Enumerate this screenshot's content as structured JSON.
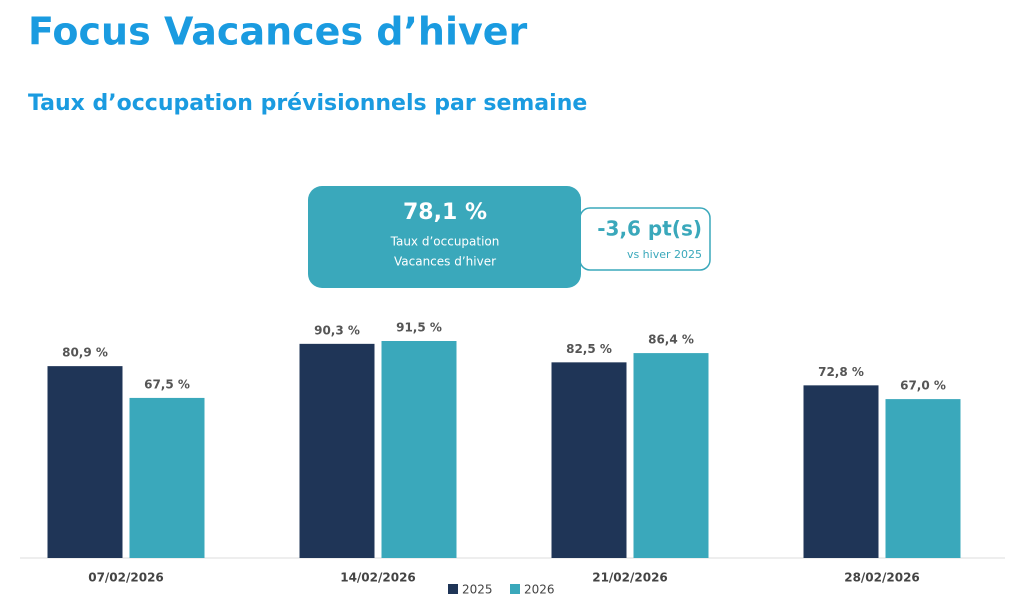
{
  "chart_data": {
    "type": "bar",
    "title": "Focus Vacances d’hiver",
    "subtitle": "Taux d’occupation prévisionnels par semaine",
    "annotations": {
      "value": "78,1 %",
      "label": [
        "Taux d’occupation",
        "Vacances d’hiver"
      ],
      "delta": "-3,6 pt(s)",
      "delta_label": "vs hiver 2025"
    },
    "categories": [
      "07/02/2026",
      "14/02/2026",
      "21/02/2026",
      "28/02/2026"
    ],
    "series": [
      {
        "name": "2025",
        "color": "#1f3557",
        "values": [
          80.9,
          90.3,
          82.5,
          72.8
        ],
        "value_labels": [
          "80,9 %",
          "90,3 %",
          "82,5 %",
          "72,8 %"
        ]
      },
      {
        "name": "2026",
        "color": "#3aa8bb",
        "values": [
          67.5,
          91.5,
          86.4,
          67.0
        ],
        "value_labels": [
          "67,5 %",
          "91,5 %",
          "86,4 %",
          "67,0 %"
        ]
      }
    ]
  }
}
